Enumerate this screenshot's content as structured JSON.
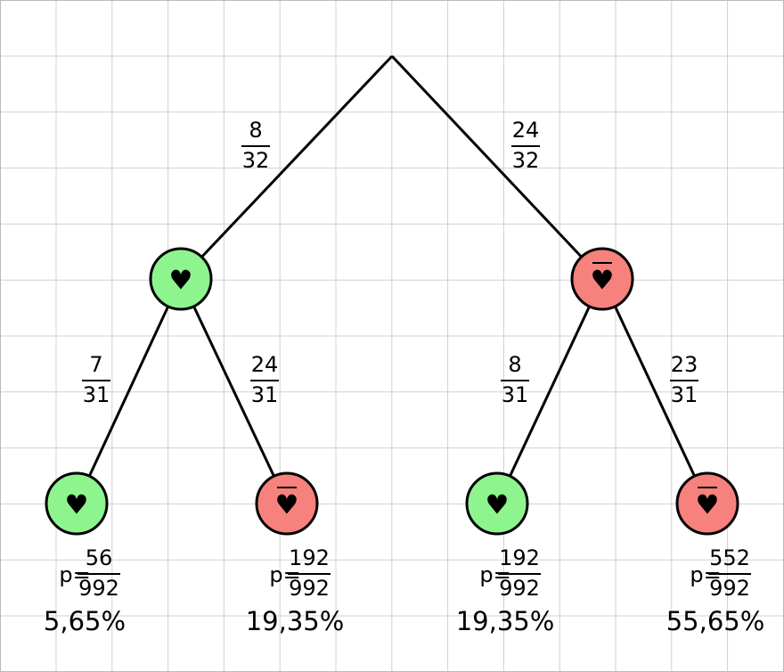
{
  "nodes": [
    {
      "symbol": "♥"
    },
    {
      "symbol": "♥"
    },
    {
      "symbol": "♥"
    },
    {
      "symbol": "♥"
    },
    {
      "symbol": "♥"
    },
    {
      "symbol": "♥"
    }
  ],
  "edges": [
    {
      "numerator": 8,
      "denominator": 32
    },
    {
      "numerator": 24,
      "denominator": 32
    },
    {
      "numerator": 7,
      "denominator": 31
    },
    {
      "numerator": 24,
      "denominator": 31
    },
    {
      "numerator": 8,
      "denominator": 31
    },
    {
      "numerator": 23,
      "denominator": 31
    }
  ],
  "leaves": [
    {
      "prefix": "p=",
      "numerator": 56,
      "denominator": 992,
      "percent": "5,65%"
    },
    {
      "prefix": "p=",
      "numerator": 192,
      "denominator": 992,
      "percent": "19,35%"
    },
    {
      "prefix": "p=",
      "numerator": 192,
      "denominator": 992,
      "percent": "19,35%"
    },
    {
      "prefix": "p=",
      "numerator": 552,
      "denominator": 992,
      "percent": "55,65%"
    }
  ]
}
